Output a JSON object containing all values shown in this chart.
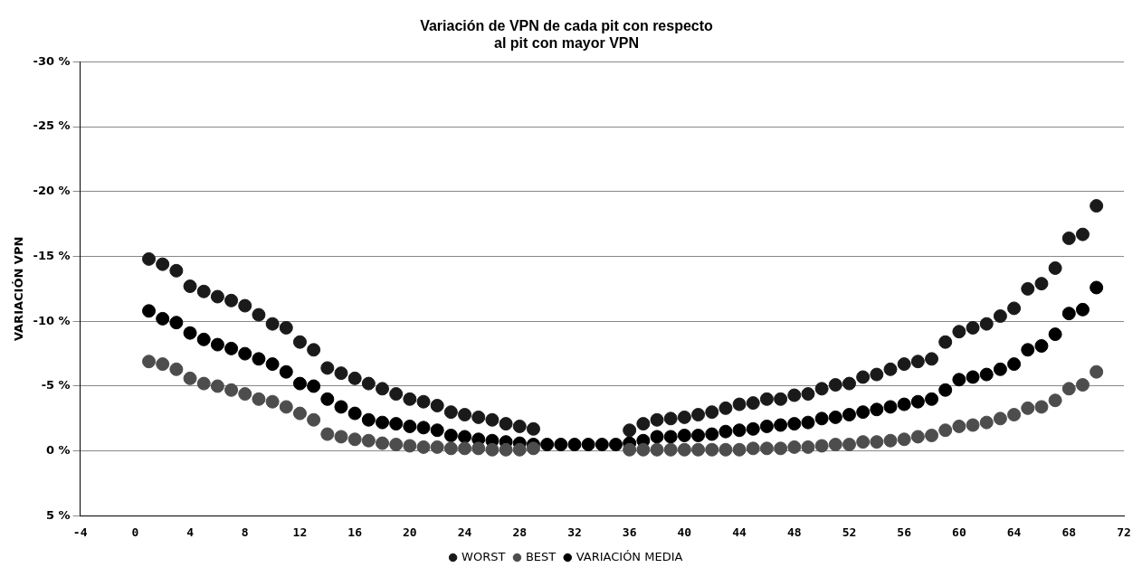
{
  "chart_data": {
    "type": "scatter",
    "title": "Variación de VPN de cada pit con respecto\nal pit con mayor VPN",
    "ylabel": "VARIACIÓN VPN",
    "x": [
      1,
      2,
      3,
      4,
      5,
      6,
      7,
      8,
      9,
      10,
      11,
      12,
      13,
      14,
      15,
      16,
      17,
      18,
      19,
      20,
      21,
      22,
      23,
      24,
      25,
      26,
      27,
      28,
      29,
      30,
      31,
      32,
      33,
      34,
      35,
      36,
      37,
      38,
      39,
      40,
      41,
      42,
      43,
      44,
      45,
      46,
      47,
      48,
      49,
      50,
      51,
      52,
      53,
      54,
      55,
      56,
      57,
      58,
      59,
      60,
      61,
      62,
      63,
      64,
      65,
      66,
      67,
      68,
      69,
      70
    ],
    "series": [
      {
        "name": "WORST",
        "color": "#1a1a1a",
        "values": [
          -14.8,
          -14.4,
          -13.9,
          -12.7,
          -12.3,
          -11.9,
          -11.6,
          -11.2,
          -10.5,
          -9.8,
          -9.5,
          -8.4,
          -7.8,
          -6.4,
          -6.0,
          -5.6,
          -5.2,
          -4.8,
          -4.4,
          -4.0,
          -3.8,
          -3.5,
          -3.0,
          -2.8,
          -2.6,
          -2.4,
          -2.1,
          -1.9,
          -1.7,
          null,
          null,
          null,
          null,
          null,
          null,
          -1.6,
          -2.1,
          -2.4,
          -2.5,
          -2.6,
          -2.8,
          -3.0,
          -3.3,
          -3.6,
          -3.7,
          -4.0,
          -4.0,
          -4.3,
          -4.4,
          -4.8,
          -5.1,
          -5.2,
          -5.7,
          -5.9,
          -6.3,
          -6.7,
          -6.9,
          -7.1,
          -8.4,
          -9.2,
          -9.5,
          -9.8,
          -10.4,
          -11.0,
          -12.5,
          -12.9,
          -14.1,
          -16.4,
          -16.7,
          -18.9
        ]
      },
      {
        "name": "BEST",
        "color": "#4d4d4d",
        "values": [
          -6.9,
          -6.7,
          -6.3,
          -5.6,
          -5.2,
          -5.0,
          -4.7,
          -4.4,
          -4.0,
          -3.8,
          -3.4,
          -2.9,
          -2.4,
          -1.3,
          -1.1,
          -0.9,
          -0.8,
          -0.6,
          -0.5,
          -0.4,
          -0.3,
          -0.3,
          -0.2,
          -0.2,
          -0.2,
          -0.1,
          -0.1,
          -0.1,
          -0.2,
          null,
          null,
          null,
          null,
          null,
          null,
          -0.1,
          -0.1,
          -0.1,
          -0.1,
          -0.1,
          -0.1,
          -0.1,
          -0.1,
          -0.1,
          -0.2,
          -0.2,
          -0.2,
          -0.3,
          -0.3,
          -0.4,
          -0.5,
          -0.5,
          -0.7,
          -0.7,
          -0.8,
          -0.9,
          -1.1,
          -1.2,
          -1.6,
          -1.9,
          -2.0,
          -2.2,
          -2.5,
          -2.8,
          -3.3,
          -3.4,
          -3.9,
          -4.8,
          -5.1,
          -6.1
        ]
      },
      {
        "name": "VARIACIÓN MEDIA",
        "color": "#000000",
        "values": [
          -10.8,
          -10.2,
          -9.9,
          -9.1,
          -8.6,
          -8.2,
          -7.9,
          -7.5,
          -7.1,
          -6.7,
          -6.1,
          -5.2,
          -5.0,
          -4.0,
          -3.4,
          -2.9,
          -2.4,
          -2.2,
          -2.1,
          -1.9,
          -1.8,
          -1.6,
          -1.2,
          -1.1,
          -0.9,
          -0.8,
          -0.7,
          -0.6,
          -0.5,
          -0.5,
          -0.5,
          -0.5,
          -0.5,
          -0.5,
          -0.5,
          -0.6,
          -0.8,
          -1.1,
          -1.1,
          -1.2,
          -1.2,
          -1.3,
          -1.5,
          -1.6,
          -1.7,
          -1.9,
          -2.0,
          -2.1,
          -2.2,
          -2.5,
          -2.6,
          -2.8,
          -3.0,
          -3.2,
          -3.4,
          -3.6,
          -3.8,
          -4.0,
          -4.7,
          -5.5,
          -5.7,
          -5.9,
          -6.3,
          -6.7,
          -7.8,
          -8.1,
          -9.0,
          -10.6,
          -10.9,
          -12.6
        ]
      }
    ],
    "xlim": [
      -4,
      72
    ],
    "xticks": [
      -4,
      0,
      4,
      8,
      12,
      16,
      20,
      24,
      28,
      32,
      36,
      40,
      44,
      48,
      52,
      56,
      60,
      64,
      68,
      72
    ],
    "ylim": [
      5,
      -30
    ],
    "yticks": [
      {
        "value": 5,
        "label": "5 %"
      },
      {
        "value": 0,
        "label": "0 %"
      },
      {
        "value": -5,
        "label": "-5 %"
      },
      {
        "value": -10,
        "label": "-10 %"
      },
      {
        "value": -15,
        "label": "-15 %"
      },
      {
        "value": -20,
        "label": "-20 %"
      },
      {
        "value": -25,
        "label": "-25 %"
      },
      {
        "value": -30,
        "label": "-30 %"
      }
    ],
    "grid": "y",
    "legend": "bottom",
    "marker": "circle"
  }
}
